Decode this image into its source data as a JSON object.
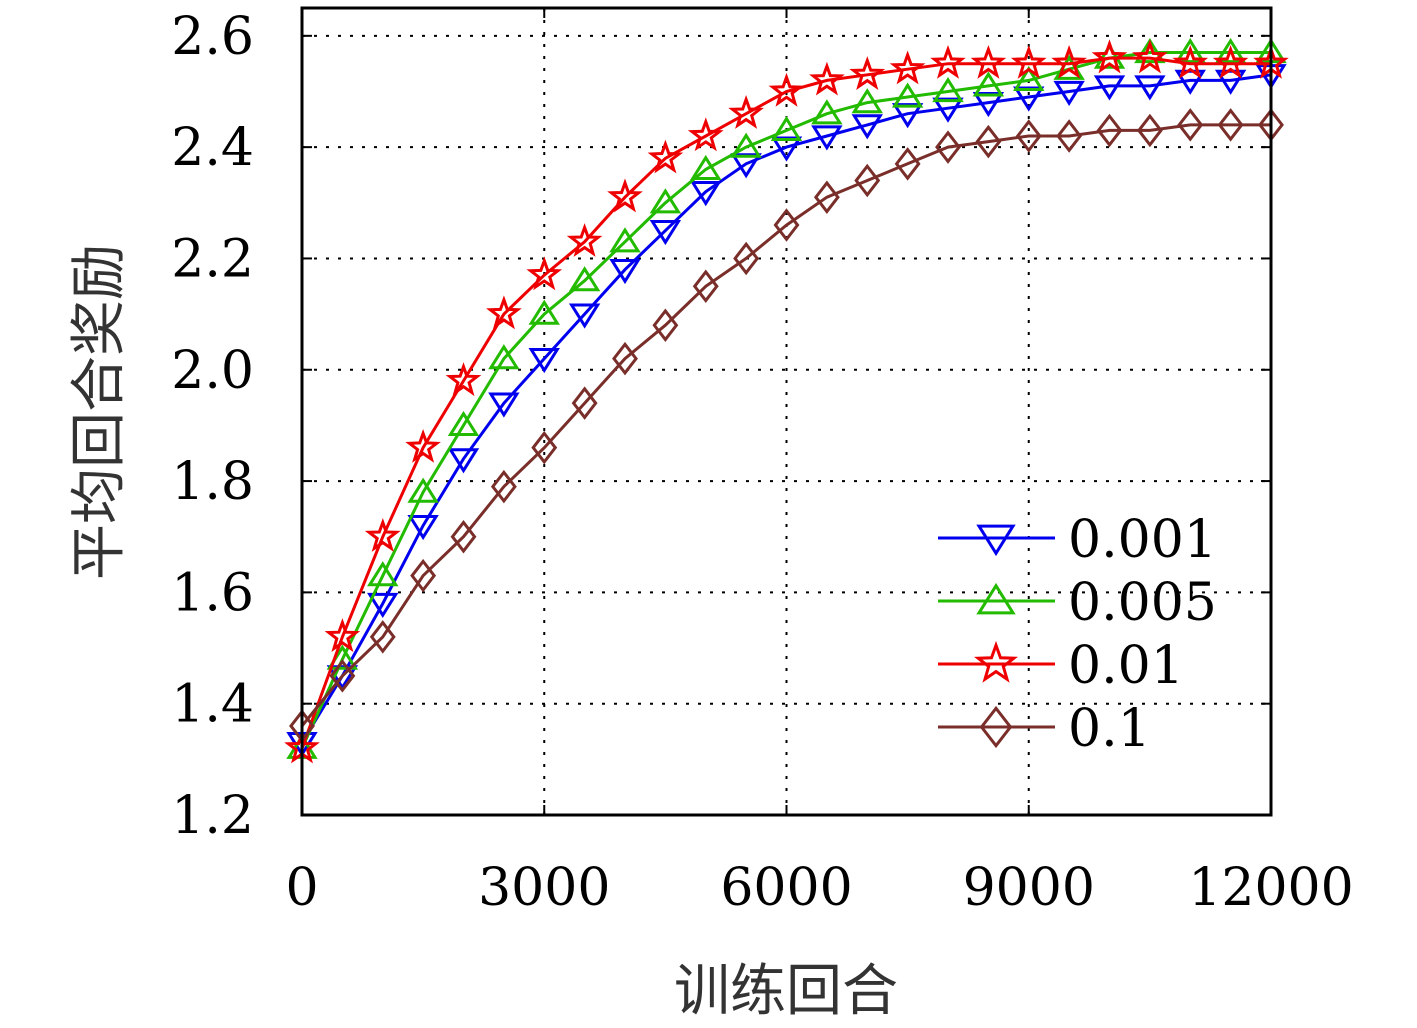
{
  "chart_data": {
    "type": "line",
    "title": "",
    "xlabel": "训练回合",
    "ylabel": "平均回合奖励",
    "xlim": [
      0,
      12000
    ],
    "ylim": [
      1.2,
      2.65
    ],
    "xticks": [
      0,
      3000,
      6000,
      9000,
      12000
    ],
    "xtick_labels": [
      "0",
      "3000",
      "6000",
      "9000",
      "12000"
    ],
    "yticks": [
      1.2,
      1.4,
      1.6,
      1.8,
      2.0,
      2.2,
      2.4,
      2.6
    ],
    "ytick_labels": [
      "1.2",
      "1.4",
      "1.6",
      "1.8",
      "2.0",
      "2.2",
      "2.4",
      "2.6"
    ],
    "grid": true,
    "legend_position": "bottom-right",
    "series": [
      {
        "name": "0.001",
        "color": "#0000ee",
        "marker": "triangle-down",
        "x": [
          0,
          500,
          1000,
          1500,
          2000,
          2500,
          3000,
          3500,
          4000,
          4500,
          5000,
          5500,
          6000,
          6500,
          7000,
          7500,
          8000,
          8500,
          9000,
          9500,
          10000,
          10500,
          11000,
          11500,
          12000
        ],
        "y": [
          1.33,
          1.45,
          1.58,
          1.72,
          1.84,
          1.94,
          2.02,
          2.1,
          2.18,
          2.25,
          2.32,
          2.37,
          2.4,
          2.42,
          2.44,
          2.46,
          2.47,
          2.48,
          2.49,
          2.5,
          2.51,
          2.51,
          2.52,
          2.52,
          2.53
        ]
      },
      {
        "name": "0.005",
        "color": "#22bb00",
        "marker": "triangle-up",
        "x": [
          0,
          500,
          1000,
          1500,
          2000,
          2500,
          3000,
          3500,
          4000,
          4500,
          5000,
          5500,
          6000,
          6500,
          7000,
          7500,
          8000,
          8500,
          9000,
          9500,
          10000,
          10500,
          11000,
          11500,
          12000
        ],
        "y": [
          1.32,
          1.48,
          1.63,
          1.78,
          1.9,
          2.02,
          2.1,
          2.16,
          2.23,
          2.3,
          2.36,
          2.4,
          2.43,
          2.46,
          2.48,
          2.49,
          2.5,
          2.51,
          2.52,
          2.54,
          2.56,
          2.57,
          2.57,
          2.57,
          2.57
        ]
      },
      {
        "name": "0.01",
        "color": "#ee0000",
        "marker": "star",
        "x": [
          0,
          500,
          1000,
          1500,
          2000,
          2500,
          3000,
          3500,
          4000,
          4500,
          5000,
          5500,
          6000,
          6500,
          7000,
          7500,
          8000,
          8500,
          9000,
          9500,
          10000,
          10500,
          11000,
          11500,
          12000
        ],
        "y": [
          1.32,
          1.52,
          1.7,
          1.86,
          1.98,
          2.1,
          2.17,
          2.23,
          2.31,
          2.38,
          2.42,
          2.46,
          2.5,
          2.52,
          2.53,
          2.54,
          2.55,
          2.55,
          2.55,
          2.55,
          2.56,
          2.56,
          2.55,
          2.55,
          2.55
        ]
      },
      {
        "name": "0.1",
        "color": "#7a2e2a",
        "marker": "diamond",
        "x": [
          0,
          500,
          1000,
          1500,
          2000,
          2500,
          3000,
          3500,
          4000,
          4500,
          5000,
          5500,
          6000,
          6500,
          7000,
          7500,
          8000,
          8500,
          9000,
          9500,
          10000,
          10500,
          11000,
          11500,
          12000
        ],
        "y": [
          1.36,
          1.45,
          1.52,
          1.63,
          1.7,
          1.79,
          1.86,
          1.94,
          2.02,
          2.08,
          2.15,
          2.2,
          2.26,
          2.31,
          2.34,
          2.37,
          2.4,
          2.41,
          2.42,
          2.42,
          2.43,
          2.43,
          2.44,
          2.44,
          2.44
        ]
      }
    ]
  }
}
